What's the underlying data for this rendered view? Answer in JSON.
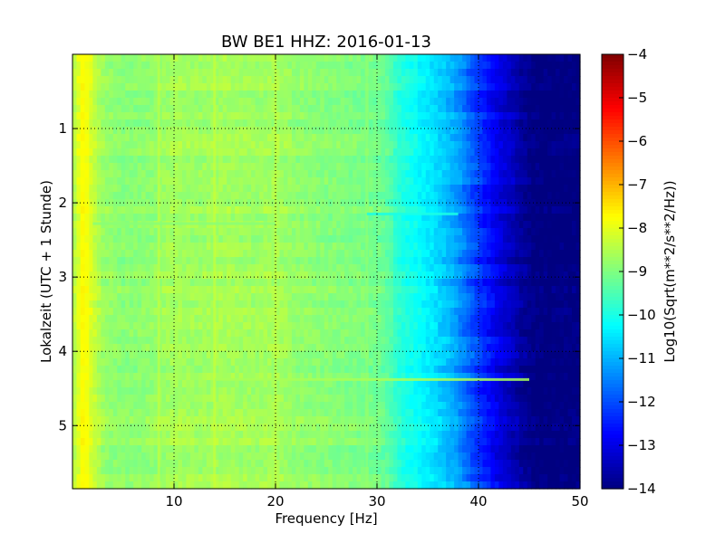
{
  "chart_data": {
    "type": "heatmap",
    "title": "BW BE1 HHZ: 2016-01-13",
    "xlabel": "Frequency [Hz]",
    "ylabel": "Lokalzeit (UTC + 1 Stunde)",
    "xlim": [
      0,
      50
    ],
    "ylim": [
      5.85,
      0.0
    ],
    "x_ticks": [
      10,
      20,
      30,
      40,
      50
    ],
    "x_tick_labels": [
      "10",
      "20",
      "30",
      "40",
      "50"
    ],
    "y_ticks": [
      1,
      2,
      3,
      4,
      5
    ],
    "y_tick_labels": [
      "1",
      "2",
      "3",
      "4",
      "5"
    ],
    "grid": true,
    "colormap": "jet",
    "colorbar": {
      "label": "Log10(Sqrt(m**2/s**2/Hz))",
      "range": [
        -14,
        -4
      ],
      "ticks": [
        -4,
        -5,
        -6,
        -7,
        -8,
        -9,
        -10,
        -11,
        -12,
        -13,
        -14
      ],
      "tick_labels": [
        "−4",
        "−5",
        "−6",
        "−7",
        "−8",
        "−9",
        "−10",
        "−11",
        "−12",
        "−13",
        "−14"
      ]
    },
    "frequency_profile": {
      "frequency_hz": [
        0,
        1,
        2,
        3,
        5,
        8,
        10,
        12,
        15,
        18,
        20,
        22,
        25,
        28,
        30,
        31,
        32,
        33,
        34,
        35,
        36,
        37,
        38,
        39,
        40,
        41,
        42,
        43,
        44,
        45,
        46,
        50
      ],
      "log_psd": [
        -8.6,
        -7.7,
        -8.2,
        -8.7,
        -8.9,
        -8.8,
        -8.6,
        -8.7,
        -8.6,
        -8.7,
        -8.6,
        -8.8,
        -8.9,
        -9.0,
        -9.1,
        -9.3,
        -9.8,
        -10.0,
        -10.2,
        -10.4,
        -10.6,
        -10.9,
        -11.2,
        -11.7,
        -12.2,
        -12.6,
        -13.0,
        -13.3,
        -13.6,
        -13.9,
        -14.0,
        -14.0
      ]
    },
    "features": [
      {
        "label": "band",
        "frequency_hz": 1.2,
        "log_psd": -7.8
      },
      {
        "label": "line",
        "frequency_hz": 8.5,
        "log_psd": -8.3
      },
      {
        "label": "line",
        "frequency_hz": 14.0,
        "log_psd": -8.2
      },
      {
        "label": "line",
        "frequency_hz": 20.0,
        "log_psd": -8.3
      },
      {
        "label": "line",
        "frequency_hz": 29.0,
        "log_psd": -8.8
      },
      {
        "label": "stripe",
        "time_h": 2.15,
        "frequency_hz": [
          29,
          38
        ],
        "log_psd": -10.0
      },
      {
        "label": "stripe",
        "time_h": 2.28,
        "frequency_hz": [
          2,
          20
        ],
        "log_psd": -8.9
      },
      {
        "label": "stripe",
        "time_h": 4.38,
        "frequency_hz": [
          14,
          45
        ],
        "log_psd": -8.6
      }
    ]
  }
}
